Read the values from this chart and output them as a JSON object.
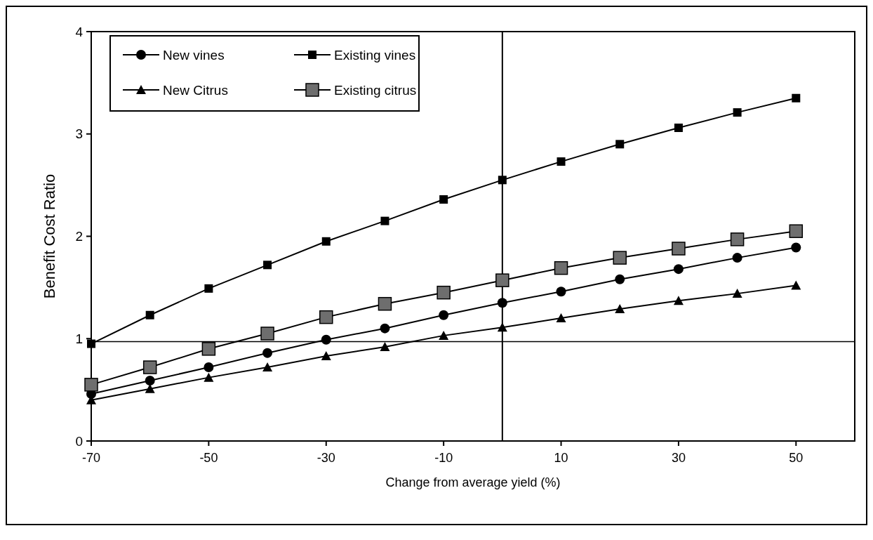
{
  "chart_data": {
    "type": "line",
    "xlabel": "Change from average yield (%)",
    "ylabel": "Benefit Cost Ratio",
    "x": [
      -70,
      -60,
      -50,
      -40,
      -30,
      -20,
      -10,
      0,
      10,
      20,
      30,
      40,
      50
    ],
    "series": [
      {
        "name": "New vines",
        "color": "#000000",
        "marker": "circle",
        "values": [
          0.46,
          0.59,
          0.72,
          0.86,
          0.99,
          1.1,
          1.23,
          1.35,
          1.46,
          1.58,
          1.68,
          1.79,
          1.89
        ]
      },
      {
        "name": "Existing vines",
        "color": "#000000",
        "marker": "square",
        "values": [
          0.95,
          1.23,
          1.49,
          1.72,
          1.95,
          2.15,
          2.36,
          2.55,
          2.73,
          2.9,
          3.06,
          3.21,
          3.35
        ]
      },
      {
        "name": "New Citrus",
        "color": "#000000",
        "marker": "triangle",
        "values": [
          0.4,
          0.51,
          0.62,
          0.72,
          0.83,
          0.92,
          1.03,
          1.11,
          1.2,
          1.29,
          1.37,
          1.44,
          1.52
        ]
      },
      {
        "name": "Existing citrus",
        "color": "#000000",
        "marker": "square",
        "values": [
          0.55,
          0.72,
          0.9,
          1.05,
          1.21,
          1.34,
          1.45,
          1.57,
          1.69,
          1.79,
          1.88,
          1.97,
          2.05
        ]
      }
    ],
    "xlim": [
      -70,
      60
    ],
    "xticks": [
      -70,
      -50,
      -30,
      -10,
      10,
      30,
      50
    ],
    "ylim": [
      0,
      4
    ],
    "yticks": [
      0,
      1,
      2,
      3,
      4
    ],
    "ref_lines": [
      {
        "axis": "y",
        "value": 0.97
      },
      {
        "axis": "x",
        "value": 0
      }
    ],
    "grid": false,
    "legend": "top left",
    "line_style": "solid"
  }
}
